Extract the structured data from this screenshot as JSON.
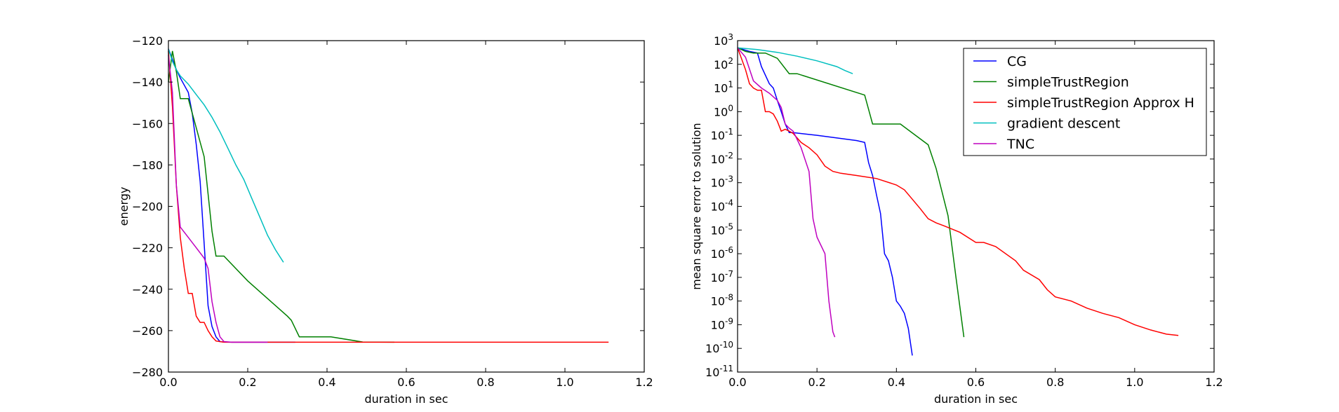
{
  "chart_data": [
    {
      "type": "line",
      "xlabel": "duration in sec",
      "ylabel": "energy",
      "xlim": [
        0.0,
        1.2
      ],
      "ylim": [
        -280,
        -120
      ],
      "yscale": "linear",
      "xticks": [
        0.0,
        0.2,
        0.4,
        0.6,
        0.8,
        1.0,
        1.2
      ],
      "xtick_labels": [
        "0.0",
        "0.2",
        "0.4",
        "0.6",
        "0.8",
        "1.0",
        "1.2"
      ],
      "yticks": [
        -120,
        -140,
        -160,
        -180,
        -200,
        -220,
        -240,
        -260,
        -280
      ],
      "ytick_labels": [
        "−120",
        "−140",
        "−160",
        "−180",
        "−200",
        "−220",
        "−240",
        "−260",
        "−280"
      ],
      "grid": false,
      "series": [
        {
          "color": "#0000ff",
          "x": [
            0.0,
            0.01,
            0.02,
            0.03,
            0.05,
            0.06,
            0.07,
            0.08,
            0.09,
            0.1,
            0.11,
            0.12,
            0.13,
            0.14,
            0.16,
            0.32
          ],
          "y": [
            -124,
            -129,
            -134,
            -138,
            -145,
            -155,
            -170,
            -188,
            -218,
            -248,
            -258,
            -263,
            -265.3,
            -265.5,
            -265.6,
            -265.6
          ]
        },
        {
          "color": "#008000",
          "x": [
            0.0,
            0.01,
            0.02,
            0.03,
            0.05,
            0.06,
            0.07,
            0.08,
            0.09,
            0.1,
            0.11,
            0.12,
            0.14,
            0.2,
            0.3,
            0.31,
            0.33,
            0.41,
            0.49,
            0.57
          ],
          "y": [
            -140,
            -125,
            -135,
            -148,
            -148,
            -155,
            -162,
            -169,
            -176,
            -194,
            -212,
            -224,
            -224,
            -236,
            -253,
            -255,
            -263,
            -263,
            -265.5,
            -265.6
          ]
        },
        {
          "color": "#ff0000",
          "x": [
            0.0,
            0.01,
            0.02,
            0.03,
            0.04,
            0.05,
            0.06,
            0.07,
            0.08,
            0.09,
            0.1,
            0.11,
            0.12,
            0.14,
            0.2,
            0.3,
            0.4,
            0.6,
            0.8,
            1.0,
            1.11
          ],
          "y": [
            -125,
            -152,
            -190,
            -215,
            -230,
            -242,
            -242,
            -253,
            -256,
            -256,
            -260,
            -263,
            -265,
            -265.6,
            -265.6,
            -265.6,
            -265.6,
            -265.6,
            -265.6,
            -265.6,
            -265.6
          ]
        },
        {
          "color": "#00bfbf",
          "x": [
            0.0,
            0.01,
            0.02,
            0.03,
            0.05,
            0.07,
            0.09,
            0.11,
            0.13,
            0.15,
            0.17,
            0.19,
            0.21,
            0.23,
            0.25,
            0.27,
            0.29
          ],
          "y": [
            -124,
            -130,
            -134,
            -137,
            -141,
            -146,
            -151,
            -157,
            -164,
            -172,
            -180,
            -187,
            -196,
            -205,
            -214,
            -221,
            -227
          ]
        },
        {
          "color": "#bf00bf",
          "x": [
            0.0,
            0.01,
            0.02,
            0.03,
            0.05,
            0.07,
            0.09,
            0.1,
            0.11,
            0.12,
            0.13,
            0.14,
            0.16,
            0.25
          ],
          "y": [
            -127,
            -145,
            -190,
            -210,
            -215,
            -220,
            -225,
            -230,
            -246,
            -256,
            -263,
            -265.3,
            -265.6,
            -265.6
          ]
        }
      ]
    },
    {
      "type": "line",
      "xlabel": "duration in sec",
      "ylabel": "mean square error to solution",
      "xlim": [
        0.0,
        1.2
      ],
      "ylim": [
        1e-11,
        1000
      ],
      "yscale": "log",
      "xticks": [
        0.0,
        0.2,
        0.4,
        0.6,
        0.8,
        1.0,
        1.2
      ],
      "xtick_labels": [
        "0.0",
        "0.2",
        "0.4",
        "0.6",
        "0.8",
        "1.0",
        "1.2"
      ],
      "yticks_exp": [
        3,
        2,
        1,
        0,
        -1,
        -2,
        -3,
        -4,
        -5,
        -6,
        -7,
        -8,
        -9,
        -10,
        -11
      ],
      "ytick_labels": [
        "10",
        "10",
        "10",
        "10",
        "10",
        "10",
        "10",
        "10",
        "10",
        "10",
        "10",
        "10",
        "10",
        "10",
        "10"
      ],
      "ytick_exponents": [
        "3",
        "2",
        "1",
        "0",
        "-1",
        "-2",
        "-3",
        "-4",
        "-5",
        "-6",
        "-7",
        "-8",
        "-9",
        "-10",
        "-11"
      ],
      "grid": false,
      "legend": "top-right",
      "series": [
        {
          "name": "CG",
          "color": "#0000ff",
          "x": [
            0.0,
            0.03,
            0.05,
            0.06,
            0.08,
            0.09,
            0.1,
            0.11,
            0.12,
            0.13,
            0.14,
            0.2,
            0.3,
            0.32,
            0.33,
            0.34,
            0.35,
            0.36,
            0.37,
            0.38,
            0.39,
            0.4,
            0.41,
            0.42,
            0.43,
            0.44
          ],
          "y": [
            500,
            350,
            300,
            80,
            15,
            10,
            3,
            1,
            0.3,
            0.13,
            0.13,
            0.1,
            0.06,
            0.05,
            0.007,
            0.002,
            0.0003,
            5e-05,
            1e-06,
            5e-07,
            1e-07,
            1e-08,
            6e-09,
            3e-09,
            7e-10,
            5e-11
          ]
        },
        {
          "name": "simpleTrustRegion",
          "color": "#008000",
          "x": [
            0.0,
            0.02,
            0.04,
            0.07,
            0.1,
            0.13,
            0.15,
            0.32,
            0.34,
            0.41,
            0.48,
            0.5,
            0.53,
            0.55,
            0.57
          ],
          "y": [
            500,
            350,
            300,
            300,
            180,
            40,
            40,
            5,
            0.3,
            0.3,
            0.04,
            0.004,
            4e-05,
            1e-07,
            3e-10
          ]
        },
        {
          "name": "simpleTrustRegion Approx H",
          "color": "#ff0000",
          "x": [
            0.0,
            0.02,
            0.03,
            0.04,
            0.05,
            0.06,
            0.07,
            0.08,
            0.09,
            0.1,
            0.11,
            0.12,
            0.13,
            0.14,
            0.16,
            0.18,
            0.2,
            0.22,
            0.24,
            0.26,
            0.3,
            0.35,
            0.4,
            0.42,
            0.44,
            0.46,
            0.48,
            0.5,
            0.52,
            0.56,
            0.6,
            0.62,
            0.65,
            0.7,
            0.72,
            0.76,
            0.78,
            0.8,
            0.84,
            0.88,
            0.92,
            0.96,
            1.0,
            1.04,
            1.08,
            1.11
          ],
          "y": [
            500,
            60,
            15,
            10,
            8,
            8,
            1,
            1,
            0.8,
            0.4,
            0.15,
            0.18,
            0.15,
            0.12,
            0.05,
            0.03,
            0.015,
            0.005,
            0.003,
            0.0025,
            0.002,
            0.0015,
            0.0008,
            0.0005,
            0.0002,
            8e-05,
            3e-05,
            2e-05,
            1.5e-05,
            8e-06,
            3e-06,
            3e-06,
            2e-06,
            5e-07,
            2e-07,
            8e-08,
            3e-08,
            1.5e-08,
            1e-08,
            5e-09,
            3e-09,
            2e-09,
            1e-09,
            6e-10,
            4e-10,
            3.5e-10
          ]
        },
        {
          "name": "gradient descent",
          "color": "#00bfbf",
          "x": [
            0.0,
            0.05,
            0.1,
            0.15,
            0.2,
            0.25,
            0.27,
            0.29
          ],
          "y": [
            500,
            420,
            320,
            220,
            140,
            80,
            55,
            40
          ]
        },
        {
          "name": "TNC",
          "color": "#bf00bf",
          "x": [
            0.0,
            0.02,
            0.04,
            0.06,
            0.08,
            0.1,
            0.11,
            0.12,
            0.13,
            0.14,
            0.16,
            0.18,
            0.19,
            0.2,
            0.22,
            0.23,
            0.24,
            0.245
          ],
          "y": [
            500,
            200,
            20,
            10,
            6,
            3,
            1.5,
            0.3,
            0.2,
            0.15,
            0.03,
            0.003,
            3e-05,
            5e-06,
            1e-06,
            1e-08,
            5e-10,
            3e-10
          ]
        }
      ]
    }
  ]
}
